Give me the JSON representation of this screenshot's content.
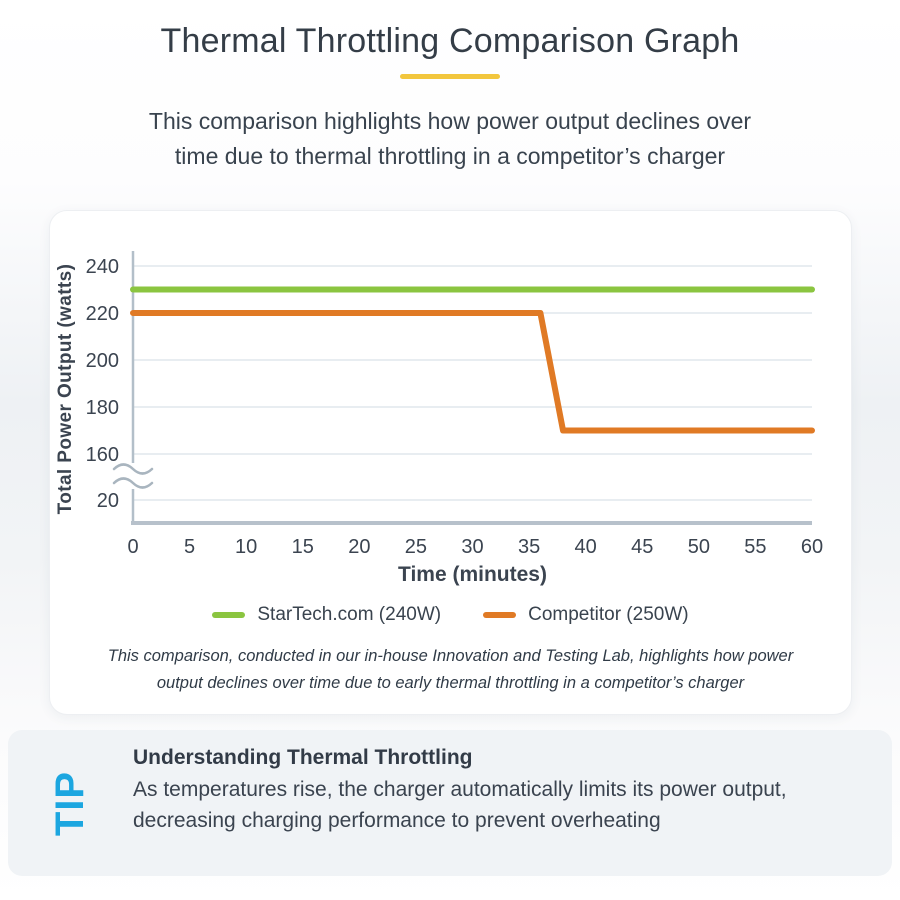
{
  "page": {
    "title": "Thermal Throttling Comparison Graph",
    "subtitle": "This comparison highlights how power output declines over time due to thermal throttling in a competitor’s charger"
  },
  "chart_data": {
    "type": "line",
    "xlabel": "Time (minutes)",
    "ylabel": "Total Power Output (watts)",
    "xlim": [
      0,
      60
    ],
    "x_ticks": [
      0,
      5,
      10,
      15,
      20,
      25,
      30,
      35,
      40,
      45,
      50,
      55,
      60
    ],
    "y_ticks": [
      240,
      220,
      200,
      180,
      160,
      20
    ],
    "y_axis_break": "between 20 and 160 (squiggle marks)",
    "grid": true,
    "legend_position": "bottom",
    "series": [
      {
        "name": "StarTech.com (240W)",
        "color": "#8BC540",
        "points": [
          [
            0,
            230
          ],
          [
            60,
            230
          ]
        ]
      },
      {
        "name": "Competitor (250W)",
        "color": "#E07A25",
        "points": [
          [
            0,
            220
          ],
          [
            36,
            220
          ],
          [
            38,
            170
          ],
          [
            60,
            170
          ]
        ]
      }
    ]
  },
  "chart_caption": "This comparison, conducted in our in-house Innovation and Testing Lab, highlights how power output declines over time due to early thermal throttling in a competitor’s charger",
  "tip": {
    "label": "TIP",
    "heading": "Understanding Thermal Throttling",
    "body": "As temperatures rise, the charger automatically limits its power output, decreasing charging performance to prevent overheating"
  },
  "colors": {
    "accent_yellow": "#F2C63D",
    "startech_green": "#8BC540",
    "competitor_orange": "#E07A25",
    "tip_blue": "#1CA6E0",
    "axis_gray": "#B3BFC9",
    "grid_gray": "#E8EDF1",
    "text_dark": "#343D47",
    "panel_gray": "#F0F3F6"
  }
}
